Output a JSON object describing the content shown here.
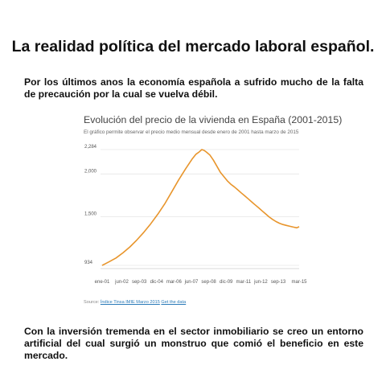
{
  "page": {
    "title": "La realidad política del mercado laboral español.",
    "paragraph1": "Por los últimos anos la economía española a sufrido mucho de la falta de precaución por la cual se vuelva débil.",
    "paragraph2": "Con la inversión tremenda en el sector inmobiliario se creo un entorno artificial del cual surgió un monstruo que comió el beneficio en este mercado."
  },
  "source": {
    "label": "Source:",
    "link1": "Índice Tinsa IMIE Marzo 2015",
    "link2": "Get the data"
  },
  "colors": {
    "line": "#e8952c",
    "grid": "#e6e6e6",
    "text": "#111111"
  },
  "chart_data": {
    "type": "line",
    "title": "Evolución del precio de la vivienda en España (2001-2015)",
    "subtitle": "El gráfico permite observar el precio medio mensual desde enero de 2001 hasta marzo de 2015",
    "x": [
      "ene-01",
      "jun-02",
      "sep-03",
      "dic-04",
      "mar-06",
      "jun-07",
      "sep-08",
      "dic-09",
      "mar-11",
      "jun-12",
      "sep-13",
      "mar-15"
    ],
    "x_months": [
      0,
      17,
      32,
      47,
      62,
      77,
      92,
      107,
      122,
      137,
      152,
      170
    ],
    "ylim": [
      934,
      2284
    ],
    "yticks": [
      934,
      1500,
      2000,
      2284
    ],
    "ytick_labels": [
      "934",
      "1,500",
      "2,000",
      "2,284"
    ],
    "grid": true,
    "series": [
      {
        "points": [
          [
            0,
            934
          ],
          [
            6,
            975
          ],
          [
            12,
            1020
          ],
          [
            18,
            1080
          ],
          [
            24,
            1150
          ],
          [
            30,
            1230
          ],
          [
            36,
            1320
          ],
          [
            42,
            1420
          ],
          [
            48,
            1530
          ],
          [
            54,
            1650
          ],
          [
            60,
            1790
          ],
          [
            66,
            1930
          ],
          [
            72,
            2060
          ],
          [
            78,
            2180
          ],
          [
            81,
            2230
          ],
          [
            84,
            2260
          ],
          [
            86,
            2284
          ],
          [
            88,
            2275
          ],
          [
            90,
            2255
          ],
          [
            93,
            2220
          ],
          [
            96,
            2160
          ],
          [
            99,
            2090
          ],
          [
            102,
            2020
          ],
          [
            105,
            1970
          ],
          [
            108,
            1920
          ],
          [
            111,
            1880
          ],
          [
            114,
            1850
          ],
          [
            117,
            1815
          ],
          [
            120,
            1780
          ],
          [
            123,
            1745
          ],
          [
            126,
            1710
          ],
          [
            129,
            1675
          ],
          [
            132,
            1640
          ],
          [
            135,
            1605
          ],
          [
            138,
            1570
          ],
          [
            141,
            1535
          ],
          [
            144,
            1500
          ],
          [
            147,
            1470
          ],
          [
            150,
            1445
          ],
          [
            153,
            1425
          ],
          [
            156,
            1410
          ],
          [
            159,
            1400
          ],
          [
            162,
            1390
          ],
          [
            165,
            1380
          ],
          [
            168,
            1372
          ],
          [
            170,
            1385
          ]
        ]
      }
    ]
  }
}
